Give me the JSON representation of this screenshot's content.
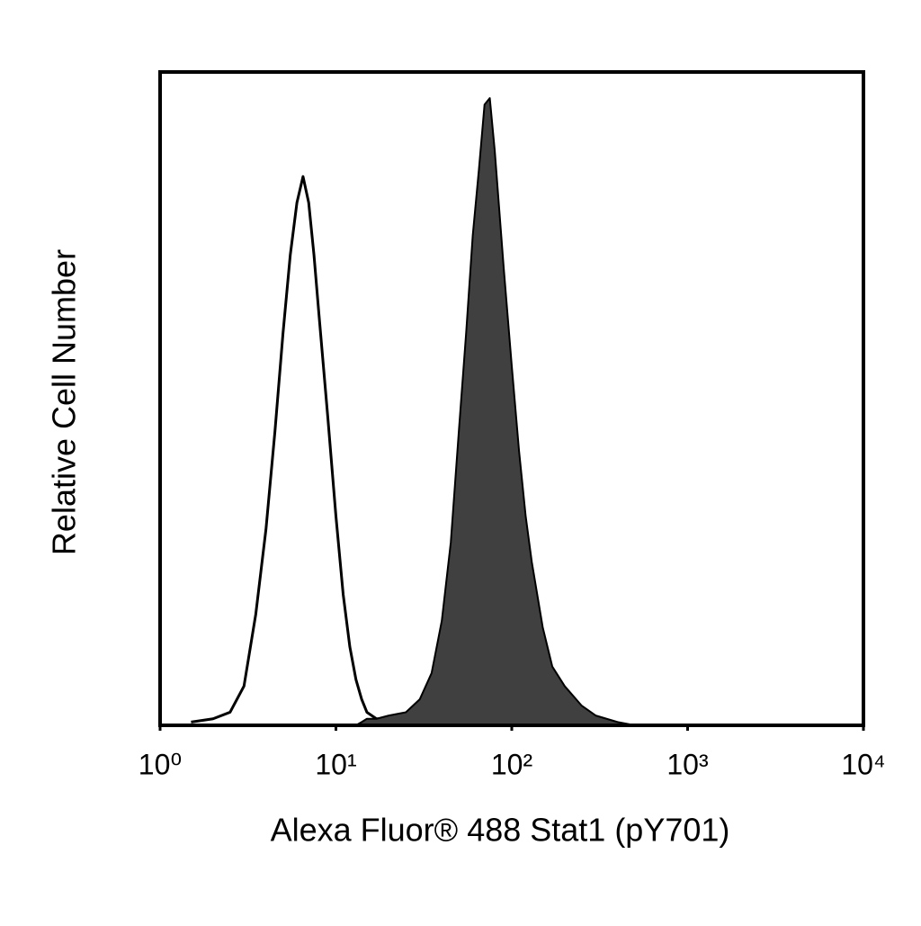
{
  "chart_data": {
    "type": "histogram",
    "x_label": "Alexa Fluor® 488 Stat1 (pY701)",
    "y_label": "Relative Cell Number",
    "xscale": "log",
    "xlim": [
      1,
      10000
    ],
    "xticks": [
      {
        "value": 1,
        "label": "10⁰"
      },
      {
        "value": 10,
        "label": "10¹"
      },
      {
        "value": 100,
        "label": "10²"
      },
      {
        "value": 1000,
        "label": "10³"
      },
      {
        "value": 10000,
        "label": "10⁴"
      }
    ],
    "ylim": [
      0,
      100
    ],
    "x": [
      1.5,
      2,
      2.5,
      3,
      3.5,
      4,
      4.5,
      5,
      5.5,
      6,
      6.5,
      7,
      7.5,
      8,
      9,
      10,
      11,
      12,
      13,
      14,
      15,
      17,
      20,
      25,
      30,
      35,
      40,
      45,
      50,
      55,
      60,
      65,
      70,
      75,
      80,
      90,
      100,
      110,
      120,
      130,
      150,
      170,
      200,
      250,
      300,
      400,
      500
    ],
    "series": [
      {
        "color": "#000000",
        "filled": false,
        "values": [
          0.5,
          1,
          2,
          6,
          17,
          30,
          45,
          60,
          72,
          80,
          84,
          80,
          72,
          63,
          47,
          32,
          20,
          12,
          7,
          4,
          2,
          1,
          1,
          1,
          0.5,
          0,
          0,
          0,
          0,
          0,
          0,
          0,
          0,
          0,
          0,
          0,
          0,
          0,
          0,
          0,
          0,
          0,
          0,
          0,
          0,
          0,
          0
        ]
      },
      {
        "color": "#404040",
        "filled": true,
        "values": [
          0,
          0,
          0,
          0,
          0,
          0,
          0,
          0,
          0,
          0,
          0,
          0,
          0,
          0,
          0,
          0,
          0,
          0,
          0,
          0.5,
          1,
          1,
          1.5,
          2,
          4,
          8,
          16,
          28,
          45,
          60,
          75,
          85,
          95,
          96,
          88,
          70,
          55,
          42,
          32,
          25,
          15,
          9,
          6,
          3,
          1.5,
          0.5,
          0
        ]
      }
    ]
  }
}
